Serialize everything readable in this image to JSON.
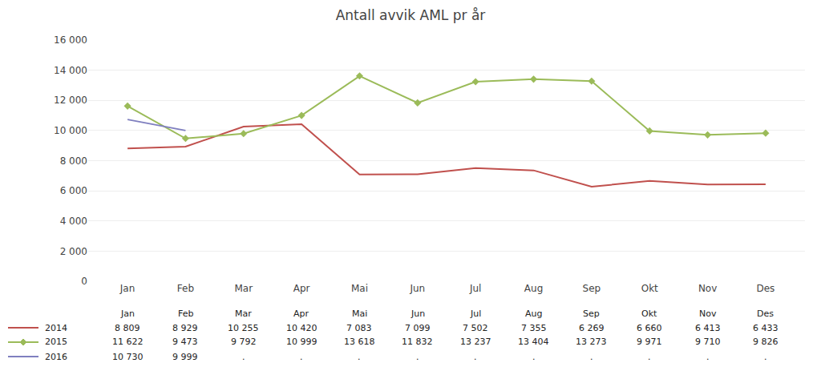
{
  "chart_data": {
    "type": "line",
    "title": "Antall avvik AML pr år",
    "categories": [
      "Jan",
      "Feb",
      "Mar",
      "Apr",
      "Mai",
      "Jun",
      "Jul",
      "Aug",
      "Sep",
      "Okt",
      "Nov",
      "Des"
    ],
    "series": [
      {
        "name": "2014",
        "color": "#c0504d",
        "values": [
          8809,
          8929,
          10255,
          10420,
          7083,
          7099,
          7502,
          7355,
          6269,
          6660,
          6413,
          6433
        ],
        "value_labels": [
          "8 809",
          "8 929",
          "10 255",
          "10 420",
          "7 083",
          "7 099",
          "7 502",
          "7 355",
          "6 269",
          "6 660",
          "6 413",
          "6 433"
        ]
      },
      {
        "name": "2015",
        "color": "#9bbb59",
        "marker": "diamond",
        "values": [
          11622,
          9473,
          9792,
          10999,
          13618,
          11832,
          13237,
          13404,
          13273,
          9971,
          9710,
          9826
        ],
        "value_labels": [
          "11 622",
          "9 473",
          "9 792",
          "10 999",
          "13 618",
          "11 832",
          "13 237",
          "13 404",
          "13 273",
          "9 971",
          "9 710",
          "9 826"
        ]
      },
      {
        "name": "2016",
        "color": "#7f7fbf",
        "values": [
          10730,
          9999,
          null,
          null,
          null,
          null,
          null,
          null,
          null,
          null,
          null,
          null
        ],
        "value_labels": [
          "10 730",
          "9 999",
          ".",
          ".",
          ".",
          ".",
          ".",
          ".",
          ".",
          ".",
          ".",
          "."
        ]
      }
    ],
    "ylim": [
      0,
      16000
    ],
    "yticks": [
      0,
      {
        "value": 2000,
        "label": "2 000"
      },
      {
        "value": 4000,
        "label": "4 000"
      },
      {
        "value": 6000,
        "label": "6 000"
      },
      {
        "value": 8000,
        "label": "8 000"
      },
      {
        "value": 10000,
        "label": "10 000"
      },
      {
        "value": 12000,
        "label": "12 000"
      },
      {
        "value": 14000,
        "label": "14 000"
      },
      {
        "value": 16000,
        "label": "16 000"
      }
    ],
    "grid": true
  }
}
